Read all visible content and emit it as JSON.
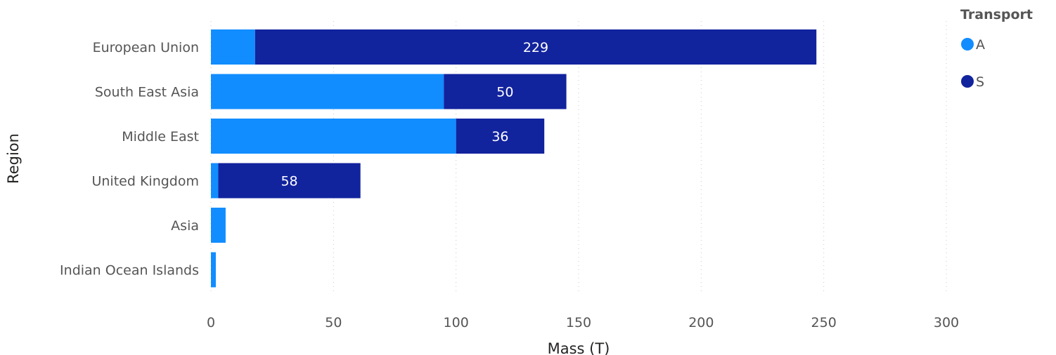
{
  "chart_data": {
    "type": "bar",
    "orientation": "horizontal",
    "stacked": true,
    "categories": [
      "European Union",
      "South East Asia",
      "Middle East",
      "United Kingdom",
      "Asia",
      "Indian Ocean Islands"
    ],
    "series": [
      {
        "name": "A",
        "color": "#118dff",
        "values": [
          18,
          95,
          100,
          3,
          6,
          2
        ],
        "labels": [
          "",
          "",
          "",
          "",
          "",
          ""
        ]
      },
      {
        "name": "S",
        "color": "#12239e",
        "values": [
          229,
          50,
          36,
          58,
          0,
          0
        ],
        "labels": [
          "229",
          "50",
          "36",
          "58",
          "",
          ""
        ]
      }
    ],
    "xlabel": "Mass (T)",
    "ylabel": "Region",
    "xlim": [
      0,
      300
    ],
    "xticks": [
      0,
      50,
      100,
      150,
      200,
      250,
      300
    ],
    "grid": true,
    "legend": {
      "title": "Transport",
      "position": "top-right"
    }
  }
}
